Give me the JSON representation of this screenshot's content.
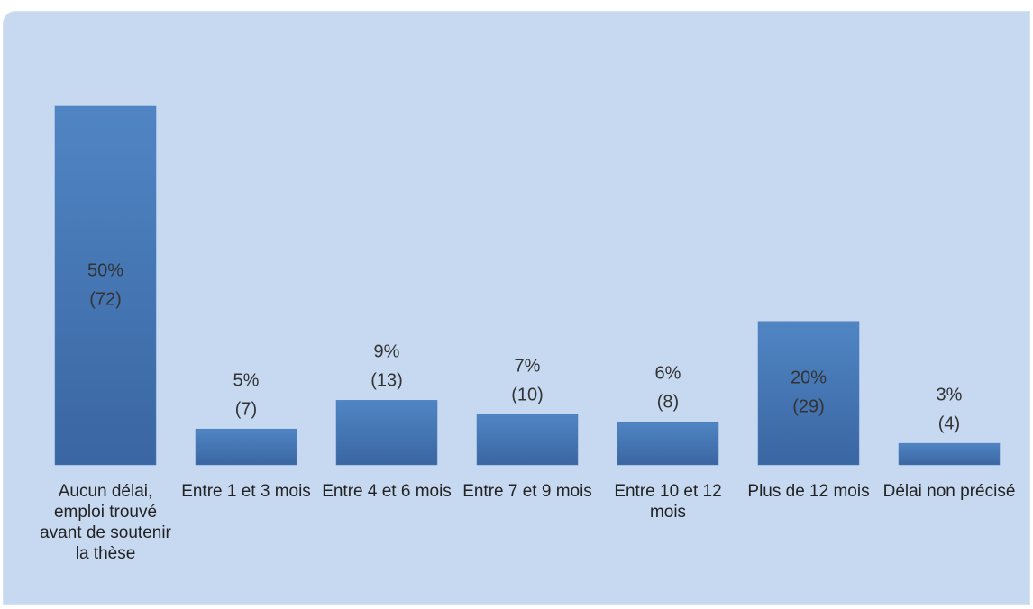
{
  "chart_data": {
    "type": "bar",
    "categories": [
      "Aucun délai, emploi trouvé avant de soutenir la thèse",
      "Entre 1 et 3 mois",
      "Entre 4 et 6 mois",
      "Entre 7 et 9 mois",
      "Entre 10 et 12 mois",
      "Plus de 12 mois",
      "Délai non précisé"
    ],
    "values": [
      50,
      5,
      9,
      7,
      6,
      20,
      3
    ],
    "value_labels": [
      "50%",
      "5%",
      "9%",
      "7%",
      "6%",
      "20%",
      "3%"
    ],
    "count_labels": [
      "(72)",
      "(7)",
      "(13)",
      "(10)",
      "(8)",
      "(29)",
      "(4)"
    ],
    "color": "#4a7ab8"
  }
}
